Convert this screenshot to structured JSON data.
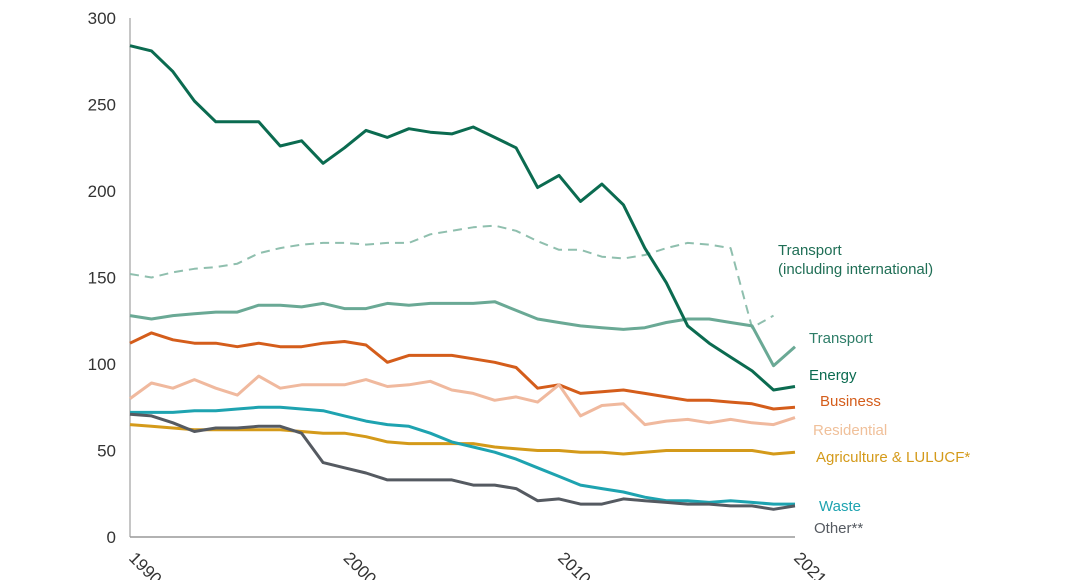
{
  "chart_data": {
    "type": "line",
    "title": "",
    "xlabel": "",
    "ylabel": "",
    "xlim": [
      1990,
      2021
    ],
    "ylim": [
      0,
      300
    ],
    "grid": false,
    "legend": "inline-right",
    "y_ticks": [
      "0",
      "50",
      "100",
      "150",
      "200",
      "250",
      "300"
    ],
    "x_ticks": [
      {
        "year": 1990,
        "label": "1990"
      },
      {
        "year": 2000,
        "label": "2000"
      },
      {
        "year": 2010,
        "label": "2010"
      },
      {
        "year": 2021,
        "label": "2021"
      }
    ],
    "x": [
      1990,
      1991,
      1992,
      1993,
      1994,
      1995,
      1996,
      1997,
      1998,
      1999,
      2000,
      2001,
      2002,
      2003,
      2004,
      2005,
      2006,
      2007,
      2008,
      2009,
      2010,
      2011,
      2012,
      2013,
      2014,
      2015,
      2016,
      2017,
      2018,
      2019,
      2020,
      2021
    ],
    "series": [
      {
        "name": "Transport (including international)",
        "label_lines": [
          "Transport",
          " (including international)"
        ],
        "color": "#8fbfae",
        "label_color": "#1f6e55",
        "dashed": true,
        "values": [
          152,
          150,
          153,
          155,
          156,
          158,
          164,
          167,
          169,
          170,
          170,
          169,
          170,
          170,
          175,
          177,
          179,
          180,
          177,
          171,
          166,
          166,
          162,
          161,
          163,
          167,
          170,
          169,
          167,
          121,
          128,
          null
        ]
      },
      {
        "name": "Transport",
        "label_lines": [
          "Transport"
        ],
        "color": "#6aa995",
        "label_color": "#2e7d68",
        "dashed": false,
        "values": [
          128,
          126,
          128,
          129,
          130,
          130,
          134,
          134,
          133,
          135,
          132,
          132,
          135,
          134,
          135,
          135,
          135,
          136,
          131,
          126,
          124,
          122,
          121,
          120,
          121,
          124,
          126,
          126,
          124,
          122,
          99,
          110
        ]
      },
      {
        "name": "Energy",
        "label_lines": [
          "Energy"
        ],
        "color": "#0b6b50",
        "label_color": "#0b6b50",
        "dashed": false,
        "values": [
          284,
          281,
          269,
          252,
          240,
          240,
          240,
          226,
          229,
          216,
          225,
          235,
          231,
          236,
          234,
          233,
          237,
          231,
          225,
          202,
          209,
          194,
          204,
          192,
          167,
          147,
          122,
          112,
          104,
          96,
          85,
          87
        ]
      },
      {
        "name": "Business",
        "label_lines": [
          "Business"
        ],
        "color": "#d45d1b",
        "label_color": "#d45d1b",
        "dashed": false,
        "values": [
          112,
          118,
          114,
          112,
          112,
          110,
          112,
          110,
          110,
          112,
          113,
          111,
          101,
          105,
          105,
          105,
          103,
          101,
          98,
          86,
          88,
          83,
          84,
          85,
          83,
          81,
          79,
          79,
          78,
          77,
          74,
          75
        ]
      },
      {
        "name": "Residential",
        "label_lines": [
          "Residential"
        ],
        "color": "#f0b99e",
        "label_color": "#f0c09a",
        "dashed": false,
        "values": [
          80,
          89,
          86,
          91,
          86,
          82,
          93,
          86,
          88,
          88,
          88,
          91,
          87,
          88,
          90,
          85,
          83,
          79,
          81,
          78,
          88,
          70,
          76,
          77,
          65,
          67,
          68,
          66,
          68,
          66,
          65,
          69
        ]
      },
      {
        "name": "Agriculture & LULUCF*",
        "label_lines": [
          "Agriculture & LULUCF*"
        ],
        "color": "#d49a1a",
        "label_color": "#d49a1a",
        "dashed": false,
        "values": [
          65,
          64,
          63,
          62,
          62,
          62,
          62,
          62,
          61,
          60,
          60,
          58,
          55,
          54,
          54,
          54,
          54,
          52,
          51,
          50,
          50,
          49,
          49,
          48,
          49,
          50,
          50,
          50,
          50,
          50,
          48,
          49
        ]
      },
      {
        "name": "Waste",
        "label_lines": [
          "Waste"
        ],
        "color": "#1ea3b0",
        "label_color": "#1ea3b0",
        "dashed": false,
        "values": [
          72,
          72,
          72,
          73,
          73,
          74,
          75,
          75,
          74,
          73,
          70,
          67,
          65,
          64,
          60,
          55,
          52,
          49,
          45,
          40,
          35,
          30,
          28,
          26,
          23,
          21,
          21,
          20,
          21,
          20,
          19,
          19
        ]
      },
      {
        "name": "Other**",
        "label_lines": [
          "Other**"
        ],
        "color": "#555a61",
        "label_color": "#555a61",
        "dashed": false,
        "values": [
          71,
          70,
          66,
          61,
          63,
          63,
          64,
          64,
          60,
          43,
          40,
          37,
          33,
          33,
          33,
          33,
          30,
          30,
          28,
          21,
          22,
          19,
          19,
          22,
          21,
          20,
          19,
          19,
          18,
          18,
          16,
          18
        ]
      }
    ]
  }
}
